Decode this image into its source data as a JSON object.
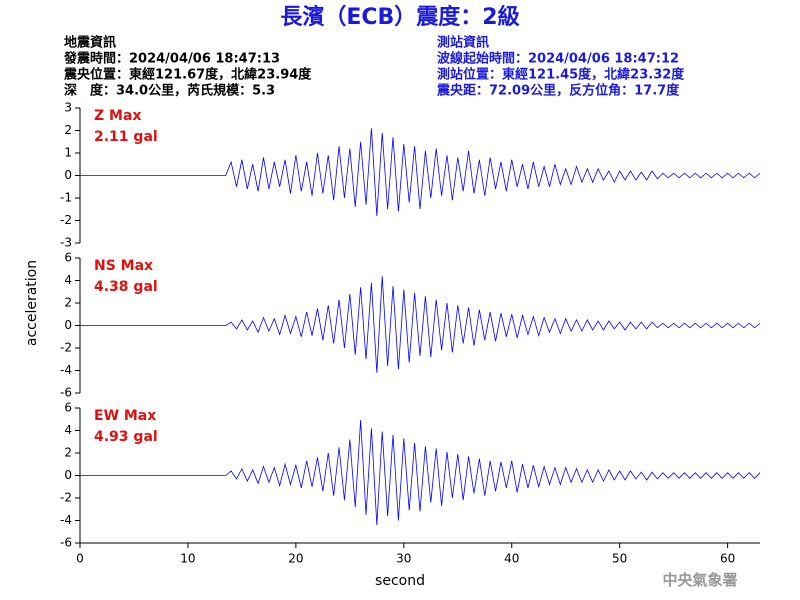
{
  "title": "長濱（ECB）震度：2級",
  "left_info": [
    "地震資訊",
    "發震時間：2024/04/06 18:47:13",
    "震央位置：東經121.67度，北緯23.94度",
    "深　度：34.0公里，芮氏規模：5.3"
  ],
  "right_info": [
    "測站資訊",
    "波線起始時間：2024/04/06 18:47:12",
    "測站位置：東經121.45度，北緯23.32度",
    "震央距：72.09公里，反方位角：17.7度"
  ],
  "footer": "中央氣象署",
  "chart_data": {
    "type": "line",
    "xlabel": "second",
    "ylabel": "acceleration",
    "xlim": [
      0,
      63
    ],
    "xticks": [
      0,
      10,
      20,
      30,
      40,
      50,
      60
    ],
    "x": [
      0,
      0.5,
      1,
      1.5,
      2,
      2.5,
      3,
      3.5,
      4,
      4.5,
      5,
      5.5,
      6,
      6.5,
      7,
      7.5,
      8,
      8.5,
      9,
      9.5,
      10,
      10.5,
      11,
      11.5,
      12,
      12.5,
      13,
      13.5,
      14,
      14.5,
      15,
      15.5,
      16,
      16.5,
      17,
      17.5,
      18,
      18.5,
      19,
      19.5,
      20,
      20.5,
      21,
      21.5,
      22,
      22.5,
      23,
      23.5,
      24,
      24.5,
      25,
      25.5,
      26,
      26.5,
      27,
      27.5,
      28,
      28.5,
      29,
      29.5,
      30,
      30.5,
      31,
      31.5,
      32,
      32.5,
      33,
      33.5,
      34,
      34.5,
      35,
      35.5,
      36,
      36.5,
      37,
      37.5,
      38,
      38.5,
      39,
      39.5,
      40,
      40.5,
      41,
      41.5,
      42,
      42.5,
      43,
      43.5,
      44,
      44.5,
      45,
      45.5,
      46,
      46.5,
      47,
      47.5,
      48,
      48.5,
      49,
      49.5,
      50,
      50.5,
      51,
      51.5,
      52,
      52.5,
      53,
      53.5,
      54,
      54.5,
      55,
      55.5,
      56,
      56.5,
      57,
      57.5,
      58,
      58.5,
      59,
      59.5,
      60,
      60.5,
      61,
      61.5,
      62,
      62.5,
      63
    ],
    "panels": [
      {
        "name": "Z Max",
        "peak_label": "2.11 gal",
        "color": "#0000ff",
        "ylim": [
          -3,
          3
        ],
        "yticks": [
          -3,
          -2,
          -1,
          0,
          1,
          2,
          3
        ],
        "values": [
          0,
          0,
          0,
          0,
          0,
          0,
          0,
          0,
          0,
          0,
          0,
          0,
          0,
          0,
          0,
          0,
          0,
          0,
          0,
          0,
          0,
          0,
          0,
          0,
          0,
          0,
          0,
          0,
          0.6,
          -0.5,
          0.7,
          -0.6,
          0.5,
          -0.7,
          0.8,
          -0.6,
          0.6,
          -0.5,
          0.7,
          -0.8,
          0.9,
          -0.7,
          0.6,
          -0.9,
          1.0,
          -0.8,
          0.9,
          -1.1,
          1.3,
          -1.0,
          1.2,
          -1.4,
          1.5,
          -1.3,
          2.1,
          -1.8,
          1.9,
          -1.5,
          1.7,
          -1.6,
          1.4,
          -1.2,
          1.3,
          -1.5,
          1.1,
          -1.0,
          1.2,
          -0.9,
          0.9,
          -1.1,
          0.8,
          -0.7,
          1.1,
          -0.8,
          0.7,
          -0.9,
          0.8,
          -0.6,
          0.6,
          -0.7,
          0.7,
          -0.5,
          0.5,
          -0.6,
          0.6,
          -0.5,
          0.4,
          -0.5,
          0.5,
          -0.4,
          0.3,
          -0.4,
          0.4,
          -0.3,
          0.3,
          -0.3,
          0.3,
          -0.2,
          0.2,
          -0.3,
          0.2,
          -0.2,
          0.2,
          -0.2,
          0.15,
          -0.2,
          0.2,
          -0.15,
          0.1,
          -0.1,
          0.1,
          -0.1,
          0.1,
          -0.1,
          0.1,
          -0.1,
          0.1,
          -0.1,
          0.1,
          -0.1,
          0.1,
          -0.1,
          0.1,
          -0.1,
          0.1,
          -0.1,
          0.1
        ]
      },
      {
        "name": "NS Max",
        "peak_label": "4.38 gal",
        "color": "#0000ff",
        "ylim": [
          -6,
          6
        ],
        "yticks": [
          -6,
          -4,
          -2,
          0,
          2,
          4,
          6
        ],
        "values": [
          0,
          0,
          0,
          0,
          0,
          0,
          0,
          0,
          0,
          0,
          0,
          0,
          0,
          0,
          0,
          0,
          0,
          0,
          0,
          0,
          0,
          0,
          0,
          0,
          0,
          0,
          0,
          0,
          0.3,
          -0.3,
          0.5,
          -0.4,
          0.4,
          -0.6,
          0.7,
          -0.5,
          0.6,
          -0.8,
          0.9,
          -0.7,
          0.8,
          -1.0,
          1.2,
          -0.9,
          1.5,
          -1.3,
          1.8,
          -1.6,
          2.3,
          -2.0,
          2.8,
          -2.6,
          3.4,
          -3.0,
          3.8,
          -4.2,
          4.38,
          -3.6,
          3.5,
          -3.9,
          3.2,
          -3.3,
          2.9,
          -2.7,
          2.6,
          -2.8,
          2.3,
          -2.2,
          2.0,
          -2.4,
          1.8,
          -1.6,
          1.6,
          -1.8,
          1.4,
          -1.3,
          1.2,
          -1.4,
          1.1,
          -1.0,
          1.0,
          -1.1,
          0.9,
          -0.8,
          0.8,
          -0.9,
          0.7,
          -0.6,
          0.6,
          -0.7,
          0.6,
          -0.5,
          0.5,
          -0.5,
          0.5,
          -0.4,
          0.4,
          -0.4,
          0.4,
          -0.3,
          0.3,
          -0.4,
          0.3,
          -0.3,
          0.3,
          -0.3,
          0.3,
          -0.2,
          0.2,
          -0.2,
          0.2,
          -0.2,
          0.2,
          -0.2,
          0.2,
          -0.2,
          0.2,
          -0.2,
          0.2,
          -0.2,
          0.2,
          -0.2,
          0.2,
          -0.2,
          0.2,
          -0.2,
          0.2
        ]
      },
      {
        "name": "EW Max",
        "peak_label": "4.93 gal",
        "color": "#0000ff",
        "ylim": [
          -6,
          6
        ],
        "yticks": [
          -6,
          -4,
          -2,
          0,
          2,
          4,
          6
        ],
        "values": [
          0,
          0,
          0,
          0,
          0,
          0,
          0,
          0,
          0,
          0,
          0,
          0,
          0,
          0,
          0,
          0,
          0,
          0,
          0,
          0,
          0,
          0,
          0,
          0,
          0,
          0,
          0,
          0,
          0.4,
          -0.3,
          0.6,
          -0.5,
          0.5,
          -0.7,
          0.8,
          -0.6,
          0.7,
          -0.9,
          1.0,
          -0.8,
          0.9,
          -1.1,
          1.3,
          -1.0,
          1.6,
          -1.4,
          2.0,
          -1.8,
          2.5,
          -2.2,
          3.2,
          -2.8,
          4.93,
          -3.5,
          4.2,
          -4.4,
          3.9,
          -3.6,
          3.6,
          -4.0,
          3.3,
          -3.1,
          2.9,
          -3.2,
          2.6,
          -2.4,
          2.4,
          -2.7,
          2.1,
          -2.0,
          1.9,
          -2.2,
          1.7,
          -1.6,
          1.5,
          -1.8,
          1.3,
          -1.4,
          1.2,
          -1.1,
          1.3,
          -1.5,
          1.0,
          -1.1,
          0.9,
          -1.0,
          0.8,
          -0.8,
          0.7,
          -0.8,
          0.7,
          -0.6,
          0.6,
          -0.6,
          0.5,
          -0.6,
          0.5,
          -0.5,
          0.5,
          -0.4,
          0.4,
          -0.4,
          0.4,
          -0.3,
          0.3,
          -0.4,
          0.3,
          -0.3,
          0.25,
          -0.25,
          0.25,
          -0.25,
          0.25,
          -0.25,
          0.25,
          -0.25,
          0.25,
          -0.25,
          0.25,
          -0.25,
          0.25,
          -0.25,
          0.25,
          -0.25,
          0.25,
          -0.25,
          0.25
        ]
      }
    ]
  }
}
